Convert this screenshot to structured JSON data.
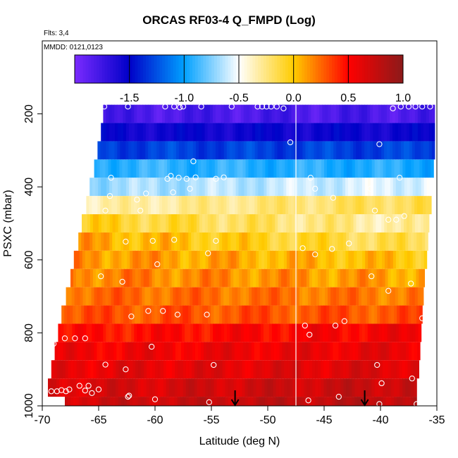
{
  "chart_data": {
    "type": "heatmap",
    "title": "ORCAS RF03-4 Q_FMPD (Log)",
    "annotations": [
      "Flts: 3,4",
      "MMDD: 0121,0123"
    ],
    "xlabel": "Latitude (deg N)",
    "ylabel": "PSXC (mbar)",
    "xlim": [
      -70,
      -35
    ],
    "ylim": [
      1000,
      0
    ],
    "x_ticks": [
      -70,
      -65,
      -60,
      -55,
      -50,
      -45,
      -40,
      -35
    ],
    "y_ticks": [
      200,
      400,
      600,
      800,
      1000
    ],
    "colorbar": {
      "range": [
        -2.0,
        1.0
      ],
      "ticks": [
        -1.5,
        -1.0,
        -0.5,
        0.0,
        0.5,
        1.0
      ],
      "tick_labels": [
        "-1.5",
        "-1.0",
        "-0.5",
        "0.0",
        "0.5",
        "1.0"
      ],
      "colors": [
        "#7b2bff",
        "#0000c8",
        "#00a0ff",
        "#ffffff",
        "#ffcc00",
        "#ff0000",
        "#8b1a1a"
      ]
    },
    "pressure_bands": [
      {
        "p_top": 175,
        "p_bottom": 225,
        "lat_start": -64.6,
        "lat_end": -35.2,
        "value_left": -1.8,
        "value_right": -1.8,
        "blend": 0.35
      },
      {
        "p_top": 225,
        "p_bottom": 275,
        "lat_start": -64.8,
        "lat_end": -35.2,
        "value_left": -1.55,
        "value_right": -1.55,
        "blend": 0.3
      },
      {
        "p_top": 275,
        "p_bottom": 325,
        "lat_start": -65.1,
        "lat_end": -35.2,
        "value_left": -1.3,
        "value_right": -1.3,
        "blend": 0.3
      },
      {
        "p_top": 325,
        "p_bottom": 375,
        "lat_start": -65.4,
        "lat_end": -35.3,
        "value_left": -0.9,
        "value_right": -0.95,
        "blend": 0.3
      },
      {
        "p_top": 375,
        "p_bottom": 425,
        "lat_start": -65.8,
        "lat_end": -35.4,
        "value_left": -0.7,
        "value_right": -0.55,
        "blend": 0.3
      },
      {
        "p_top": 425,
        "p_bottom": 475,
        "lat_start": -66.1,
        "lat_end": -35.5,
        "value_left": -0.35,
        "value_right": -0.15,
        "blend": 0.3
      },
      {
        "p_top": 475,
        "p_bottom": 525,
        "lat_start": -66.5,
        "lat_end": -35.7,
        "value_left": -0.05,
        "value_right": -0.35,
        "blend": 0.4
      },
      {
        "p_top": 525,
        "p_bottom": 575,
        "lat_start": -66.8,
        "lat_end": -35.8,
        "value_left": 0.1,
        "value_right": -0.2,
        "blend": 0.4
      },
      {
        "p_top": 575,
        "p_bottom": 625,
        "lat_start": -67.2,
        "lat_end": -35.9,
        "value_left": 0.15,
        "value_right": 0.0,
        "blend": 0.4
      },
      {
        "p_top": 625,
        "p_bottom": 675,
        "lat_start": -67.5,
        "lat_end": -36.1,
        "value_left": 0.2,
        "value_right": 0.1,
        "blend": 0.4
      },
      {
        "p_top": 675,
        "p_bottom": 725,
        "lat_start": -67.9,
        "lat_end": -36.2,
        "value_left": 0.25,
        "value_right": 0.2,
        "blend": 0.35
      },
      {
        "p_top": 725,
        "p_bottom": 775,
        "lat_start": -68.3,
        "lat_end": -36.3,
        "value_left": 0.3,
        "value_right": 0.3,
        "blend": 0.35
      },
      {
        "p_top": 775,
        "p_bottom": 825,
        "lat_start": -68.6,
        "lat_end": -36.4,
        "value_left": 0.45,
        "value_right": 0.55,
        "blend": 0.35
      },
      {
        "p_top": 825,
        "p_bottom": 875,
        "lat_start": -68.9,
        "lat_end": -36.5,
        "value_left": 0.55,
        "value_right": 0.6,
        "blend": 0.35
      },
      {
        "p_top": 875,
        "p_bottom": 925,
        "lat_start": -69.2,
        "lat_end": -36.6,
        "value_left": 0.6,
        "value_right": 0.65,
        "blend": 0.35
      },
      {
        "p_top": 925,
        "p_bottom": 975,
        "lat_start": -69.5,
        "lat_end": -36.8,
        "value_left": 0.65,
        "value_right": 0.75,
        "blend": 0.35
      },
      {
        "p_top": 975,
        "p_bottom": 1000,
        "lat_start": -68.0,
        "lat_end": -36.8,
        "value_left": 0.7,
        "value_right": 0.8,
        "blend": 0.35
      }
    ],
    "sample_points": [
      {
        "lat": -64.5,
        "p": 180
      },
      {
        "lat": -62.4,
        "p": 180
      },
      {
        "lat": -59.1,
        "p": 180
      },
      {
        "lat": -58.3,
        "p": 180
      },
      {
        "lat": -57.8,
        "p": 182
      },
      {
        "lat": -57.5,
        "p": 180
      },
      {
        "lat": -55.9,
        "p": 180
      },
      {
        "lat": -53.2,
        "p": 180
      },
      {
        "lat": -50.9,
        "p": 180
      },
      {
        "lat": -50.5,
        "p": 180
      },
      {
        "lat": -50.1,
        "p": 180
      },
      {
        "lat": -49.7,
        "p": 180
      },
      {
        "lat": -49.2,
        "p": 180
      },
      {
        "lat": -48.6,
        "p": 185
      },
      {
        "lat": -38.9,
        "p": 185
      },
      {
        "lat": -38.2,
        "p": 180
      },
      {
        "lat": -37.5,
        "p": 180
      },
      {
        "lat": -36.9,
        "p": 180
      },
      {
        "lat": -36.3,
        "p": 180
      },
      {
        "lat": -35.6,
        "p": 180
      },
      {
        "lat": -48.0,
        "p": 278
      },
      {
        "lat": -40.1,
        "p": 283
      },
      {
        "lat": -56.6,
        "p": 330
      },
      {
        "lat": -63.9,
        "p": 375
      },
      {
        "lat": -58.9,
        "p": 378
      },
      {
        "lat": -58.6,
        "p": 370
      },
      {
        "lat": -57.9,
        "p": 375
      },
      {
        "lat": -57.2,
        "p": 378
      },
      {
        "lat": -56.4,
        "p": 374
      },
      {
        "lat": -54.6,
        "p": 378
      },
      {
        "lat": -53.9,
        "p": 374
      },
      {
        "lat": -46.2,
        "p": 375
      },
      {
        "lat": -38.3,
        "p": 375
      },
      {
        "lat": -35.1,
        "p": 390
      },
      {
        "lat": -40.9,
        "p": 405
      },
      {
        "lat": -45.8,
        "p": 405
      },
      {
        "lat": -56.9,
        "p": 405
      },
      {
        "lat": -58.4,
        "p": 415
      },
      {
        "lat": -60.8,
        "p": 418
      },
      {
        "lat": -64.0,
        "p": 425
      },
      {
        "lat": -44.2,
        "p": 430
      },
      {
        "lat": -61.6,
        "p": 435
      },
      {
        "lat": -64.4,
        "p": 465
      },
      {
        "lat": -61.3,
        "p": 465
      },
      {
        "lat": -40.5,
        "p": 465
      },
      {
        "lat": -39.3,
        "p": 490
      },
      {
        "lat": -37.9,
        "p": 480
      },
      {
        "lat": -38.6,
        "p": 490
      },
      {
        "lat": -62.6,
        "p": 550
      },
      {
        "lat": -60.2,
        "p": 548
      },
      {
        "lat": -58.3,
        "p": 545
      },
      {
        "lat": -54.6,
        "p": 548
      },
      {
        "lat": -42.8,
        "p": 555
      },
      {
        "lat": -44.3,
        "p": 570
      },
      {
        "lat": -46.9,
        "p": 568
      },
      {
        "lat": -55.3,
        "p": 582
      },
      {
        "lat": -45.8,
        "p": 585
      },
      {
        "lat": -59.8,
        "p": 612
      },
      {
        "lat": -64.8,
        "p": 645
      },
      {
        "lat": -62.9,
        "p": 660
      },
      {
        "lat": -40.8,
        "p": 645
      },
      {
        "lat": -39.3,
        "p": 685
      },
      {
        "lat": -37.3,
        "p": 665
      },
      {
        "lat": -60.6,
        "p": 740
      },
      {
        "lat": -59.3,
        "p": 740
      },
      {
        "lat": -58.0,
        "p": 750
      },
      {
        "lat": -55.4,
        "p": 750
      },
      {
        "lat": -62.1,
        "p": 755
      },
      {
        "lat": -69.1,
        "p": 735
      },
      {
        "lat": -69.0,
        "p": 760
      },
      {
        "lat": -43.2,
        "p": 768
      },
      {
        "lat": -44.0,
        "p": 780
      },
      {
        "lat": -46.7,
        "p": 780
      },
      {
        "lat": -36.3,
        "p": 760
      },
      {
        "lat": -46.3,
        "p": 805
      },
      {
        "lat": -69.0,
        "p": 815
      },
      {
        "lat": -68.0,
        "p": 815
      },
      {
        "lat": -67.1,
        "p": 815
      },
      {
        "lat": -66.2,
        "p": 815
      },
      {
        "lat": -69.0,
        "p": 830
      },
      {
        "lat": -60.3,
        "p": 838
      },
      {
        "lat": -64.4,
        "p": 887
      },
      {
        "lat": -62.6,
        "p": 900
      },
      {
        "lat": -54.8,
        "p": 888
      },
      {
        "lat": -40.3,
        "p": 888
      },
      {
        "lat": -37.2,
        "p": 925
      },
      {
        "lat": -39.9,
        "p": 938
      },
      {
        "lat": -69.2,
        "p": 960
      },
      {
        "lat": -68.7,
        "p": 960
      },
      {
        "lat": -68.3,
        "p": 957
      },
      {
        "lat": -67.9,
        "p": 960
      },
      {
        "lat": -67.6,
        "p": 955
      },
      {
        "lat": -66.7,
        "p": 945
      },
      {
        "lat": -65.9,
        "p": 945
      },
      {
        "lat": -65.0,
        "p": 955
      },
      {
        "lat": -66.2,
        "p": 958
      },
      {
        "lat": -65.6,
        "p": 965
      },
      {
        "lat": -62.4,
        "p": 975
      },
      {
        "lat": -62.3,
        "p": 972
      },
      {
        "lat": -60.0,
        "p": 982
      },
      {
        "lat": -55.2,
        "p": 990
      },
      {
        "lat": -46.4,
        "p": 985
      },
      {
        "lat": -43.7,
        "p": 975
      },
      {
        "lat": -40.1,
        "p": 995
      },
      {
        "lat": -36.8,
        "p": 995
      }
    ],
    "vertical_line_lat": -47.5,
    "markers": [
      {
        "lat": -52.9,
        "p": 1000
      },
      {
        "lat": -41.4,
        "p": 1000
      }
    ]
  }
}
